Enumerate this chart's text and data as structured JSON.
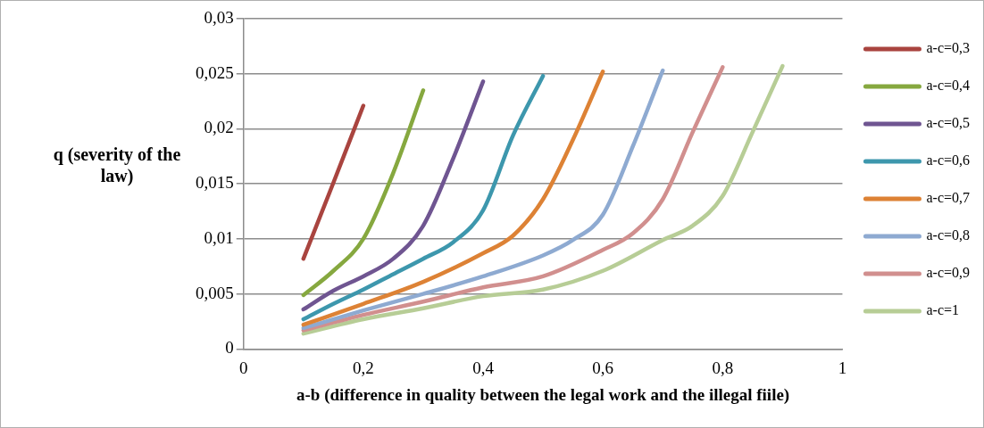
{
  "chart_data": {
    "type": "line",
    "xlabel": "a-b (difference in quality between the legal work and the illegal fiile)",
    "ylabel": "q (severity of the law)",
    "xlim": [
      0,
      1
    ],
    "xticks": [
      0,
      {
        "value": 0.2,
        "label": "0,2"
      },
      {
        "value": 0.4,
        "label": "0,4"
      },
      {
        "value": 0.6,
        "label": "0,6"
      },
      {
        "value": 0.8,
        "label": "0,8"
      },
      1
    ],
    "ylim": [
      0,
      0.03
    ],
    "yticks": [
      0,
      {
        "value": 0.005,
        "label": "0,005"
      },
      {
        "value": 0.01,
        "label": "0,01"
      },
      {
        "value": 0.015,
        "label": "0,015"
      },
      {
        "value": 0.02,
        "label": "0,02"
      },
      {
        "value": 0.025,
        "label": "0,025"
      },
      {
        "value": 0.03,
        "label": "0,03"
      }
    ],
    "grid": "y",
    "legend": "right",
    "marker": "none",
    "line_style": "solid",
    "series": [
      {
        "name": "a-c=0,3",
        "color": "#a9443f",
        "x": [
          0.1,
          0.15,
          0.2
        ],
        "values": [
          0.0082,
          0.0151,
          0.0221
        ]
      },
      {
        "name": "a-c=0,4",
        "color": "#86a83f",
        "x": [
          0.1,
          0.15,
          0.2,
          0.25,
          0.3
        ],
        "values": [
          0.0049,
          0.0071,
          0.01,
          0.016,
          0.0235
        ]
      },
      {
        "name": "a-c=0,5",
        "color": "#6f5591",
        "x": [
          0.1,
          0.15,
          0.2,
          0.25,
          0.3,
          0.35,
          0.4
        ],
        "values": [
          0.0036,
          0.0053,
          0.0066,
          0.0082,
          0.0112,
          0.0173,
          0.0243
        ]
      },
      {
        "name": "a-c=0,6",
        "color": "#3d97ad",
        "x": [
          0.1,
          0.15,
          0.2,
          0.25,
          0.3,
          0.35,
          0.4,
          0.45,
          0.5
        ],
        "values": [
          0.0027,
          0.0041,
          0.0054,
          0.0068,
          0.0082,
          0.0097,
          0.0126,
          0.0194,
          0.0248
        ]
      },
      {
        "name": "a-c=0,7",
        "color": "#dd8235",
        "x": [
          0.1,
          0.2,
          0.3,
          0.4,
          0.45,
          0.5,
          0.55,
          0.6
        ],
        "values": [
          0.0022,
          0.0041,
          0.0061,
          0.0087,
          0.0103,
          0.0136,
          0.019,
          0.0252
        ]
      },
      {
        "name": "a-c=0,8",
        "color": "#8eaad1",
        "x": [
          0.1,
          0.2,
          0.3,
          0.4,
          0.5,
          0.55,
          0.6,
          0.65,
          0.7
        ],
        "values": [
          0.0019,
          0.0035,
          0.005,
          0.0066,
          0.0085,
          0.0099,
          0.0122,
          0.0184,
          0.0253
        ]
      },
      {
        "name": "a-c=0,9",
        "color": "#d18f8e",
        "x": [
          0.1,
          0.2,
          0.3,
          0.4,
          0.5,
          0.6,
          0.65,
          0.7,
          0.75,
          0.8
        ],
        "values": [
          0.0017,
          0.0031,
          0.0043,
          0.0056,
          0.0066,
          0.009,
          0.0105,
          0.0136,
          0.0197,
          0.0256
        ]
      },
      {
        "name": "a-c=1",
        "color": "#b7cd96",
        "x": [
          0.1,
          0.2,
          0.3,
          0.4,
          0.5,
          0.6,
          0.7,
          0.75,
          0.8,
          0.85,
          0.9
        ],
        "values": [
          0.0014,
          0.0027,
          0.0037,
          0.0048,
          0.0054,
          0.0071,
          0.0099,
          0.0112,
          0.0139,
          0.0197,
          0.0257
        ]
      }
    ]
  }
}
